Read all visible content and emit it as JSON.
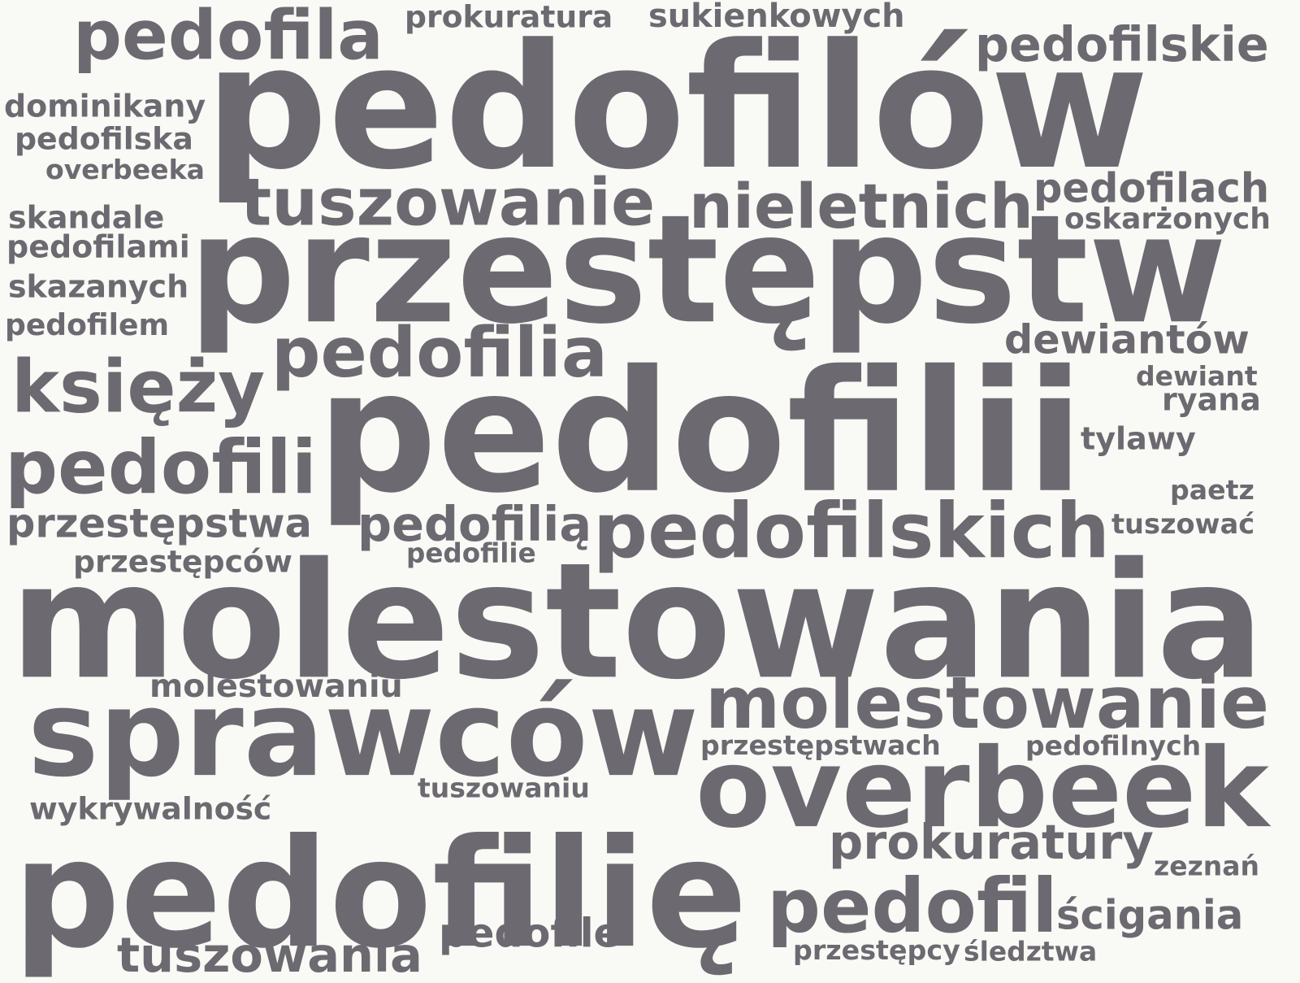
{
  "word_cloud": {
    "color": "#6c6a70",
    "background": "#f9f9f6",
    "words": [
      "pedofila",
      "prokuratura",
      "sukienkowych",
      "pedofilów",
      "pedofilskie",
      "dominikany",
      "pedofilska",
      "overbeeka",
      "tuszowanie",
      "nieletnich",
      "pedofilach",
      "oskarżonych",
      "skandale",
      "pedofilami",
      "przestępstw",
      "skazanych",
      "pedofilem",
      "dewiantów",
      "pedofilia",
      "dewiant",
      "księży",
      "ryana",
      "pedofilii",
      "tylawy",
      "pedofili",
      "paetz",
      "przestępstwa",
      "pedofilią",
      "pedofilskich",
      "tuszować",
      "pedofilie",
      "przestępców",
      "molestowania",
      "molestowaniu",
      "molestowanie",
      "sprawców",
      "przestępstwach",
      "pedofilnych",
      "tuszowaniu",
      "overbeek",
      "wykrywalność",
      "prokuratury",
      "pedofilię",
      "zeznań",
      "pedofil",
      "ścigania",
      "tuszowania",
      "pedofile",
      "przestępcy",
      "śledztwa"
    ]
  }
}
